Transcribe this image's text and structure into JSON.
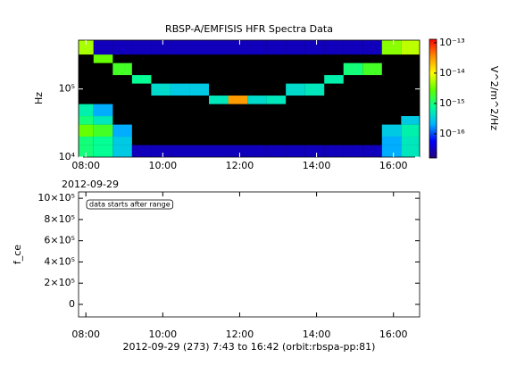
{
  "chart_data": [
    {
      "type": "spectrogram",
      "title": "RBSP-A/EMFISIS  HFR Spectra Data",
      "ylabel": "Hz",
      "annotation": "2012-09-29",
      "colorbar_label": "V^2/m^2/Hz",
      "xlim": [
        7.81,
        16.68
      ],
      "xticks": [
        {
          "value": 8,
          "label": "08:00"
        },
        {
          "value": 10,
          "label": "10:00"
        },
        {
          "value": 12,
          "label": "12:00"
        },
        {
          "value": 14,
          "label": "14:00"
        },
        {
          "value": 16,
          "label": "16:00"
        }
      ],
      "ylim": [
        10000,
        520000
      ],
      "yscale": "log",
      "yticks": [
        {
          "value": 10000,
          "label": "10⁴"
        },
        {
          "value": 100000,
          "label": "10⁵"
        }
      ],
      "clim": [
        1.6e-17,
        1.3e-13
      ],
      "cscale": "log",
      "cticks": [
        {
          "value": 1e-13,
          "label": "10⁻¹³"
        },
        {
          "value": 1e-14,
          "label": "10⁻¹⁴"
        },
        {
          "value": 1e-15,
          "label": "10⁻¹⁵"
        },
        {
          "value": 1e-16,
          "label": "10⁻¹⁶"
        }
      ],
      "colormap": [
        "#22007a",
        "#0000ff",
        "#00b4ff",
        "#00ff9a",
        "#5aff00",
        "#ffff00",
        "#ff8c00",
        "#ff0000"
      ],
      "background": "#000000",
      "xbins": [
        7.81,
        8.2,
        8.7,
        9.2,
        9.7,
        10.2,
        10.7,
        11.2,
        11.7,
        12.2,
        12.7,
        13.2,
        13.7,
        14.2,
        14.7,
        15.2,
        15.7,
        16.2,
        16.68
      ],
      "ybins": [
        10000,
        15000,
        20000,
        30000,
        40000,
        60000,
        80000,
        120000,
        160000,
        240000,
        320000,
        520000
      ],
      "z": [
        [
          1e-15,
          8e-16,
          3e-16,
          3e-17,
          3e-17,
          3e-17,
          3e-17,
          3e-17,
          3e-17,
          3e-17,
          3e-17,
          3e-17,
          3e-17,
          3e-17,
          3e-17,
          3e-17,
          2e-16,
          5e-16
        ],
        [
          1e-15,
          8e-16,
          3e-16,
          null,
          null,
          null,
          null,
          null,
          null,
          null,
          null,
          null,
          null,
          null,
          null,
          null,
          2e-16,
          5e-16
        ],
        [
          3e-15,
          2e-15,
          2e-16,
          null,
          null,
          null,
          null,
          null,
          null,
          null,
          null,
          null,
          null,
          null,
          null,
          null,
          3e-16,
          6e-16
        ],
        [
          1e-15,
          5e-16,
          null,
          null,
          null,
          null,
          null,
          null,
          null,
          null,
          null,
          null,
          null,
          null,
          null,
          null,
          null,
          3e-16
        ],
        [
          6e-16,
          2e-16,
          null,
          null,
          null,
          null,
          null,
          null,
          null,
          null,
          null,
          null,
          null,
          null,
          null,
          null,
          null,
          null
        ],
        [
          null,
          null,
          null,
          null,
          null,
          null,
          null,
          5e-16,
          3e-14,
          4e-16,
          5e-16,
          null,
          null,
          null,
          null,
          null,
          null,
          null
        ],
        [
          null,
          null,
          null,
          null,
          4e-16,
          3e-16,
          3e-16,
          null,
          null,
          null,
          null,
          4e-16,
          5e-16,
          null,
          null,
          null,
          null,
          null
        ],
        [
          null,
          null,
          null,
          8e-16,
          null,
          null,
          null,
          null,
          null,
          null,
          null,
          null,
          null,
          6e-16,
          null,
          null,
          null,
          null
        ],
        [
          null,
          null,
          2e-15,
          null,
          null,
          null,
          null,
          null,
          null,
          null,
          null,
          null,
          null,
          null,
          1e-15,
          2e-15,
          null,
          null
        ],
        [
          null,
          3e-15,
          null,
          null,
          null,
          null,
          null,
          null,
          null,
          null,
          null,
          null,
          null,
          null,
          null,
          null,
          null,
          null
        ],
        [
          5e-15,
          3e-17,
          3e-17,
          3e-17,
          3e-17,
          3e-17,
          3e-17,
          3e-17,
          3e-17,
          3e-17,
          3e-17,
          3e-17,
          3e-17,
          3e-17,
          3e-17,
          3e-17,
          4e-15,
          6e-15
        ]
      ]
    },
    {
      "type": "line",
      "ylabel": "f_ce",
      "xlabel": "2012-09-29 (273) 7:43 to 16:42 (orbit:rbspa-pp:81)",
      "annotation": "data starts after range",
      "xlim": [
        7.81,
        16.68
      ],
      "xticks": [
        {
          "value": 8,
          "label": "08:00"
        },
        {
          "value": 10,
          "label": "10:00"
        },
        {
          "value": 12,
          "label": "12:00"
        },
        {
          "value": 14,
          "label": "14:00"
        },
        {
          "value": 16,
          "label": "16:00"
        }
      ],
      "ylim": [
        -118000,
        1060000
      ],
      "yticks": [
        0,
        {
          "value": 200000,
          "label": "2×10⁵"
        },
        {
          "value": 400000,
          "label": "4×10⁵"
        },
        {
          "value": 600000,
          "label": "6×10⁵"
        },
        {
          "value": 800000,
          "label": "8×10⁵"
        },
        {
          "value": 1000000,
          "label": "10×10⁵"
        }
      ],
      "series": []
    }
  ]
}
